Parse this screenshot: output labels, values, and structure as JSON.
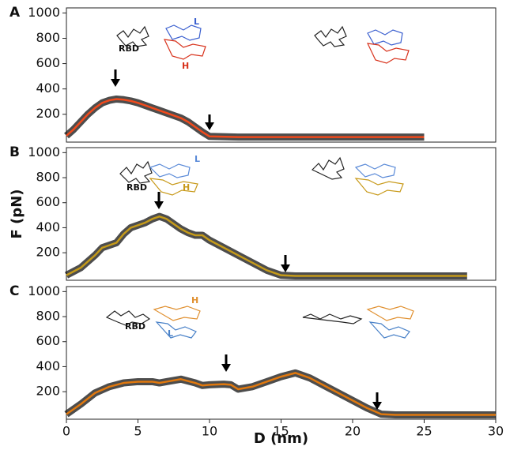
{
  "chart_data": [
    {
      "type": "line",
      "title": "A",
      "annotations": [
        "RBD",
        "L",
        "H"
      ],
      "xlim": [
        0,
        30
      ],
      "ylim": [
        -20,
        1040
      ],
      "yticks": [
        200,
        400,
        600,
        800,
        1000
      ],
      "series": [
        {
          "color": "#f04a1c",
          "x": [
            0,
            0.5,
            1,
            1.5,
            2,
            2.5,
            3,
            3.5,
            4,
            4.5,
            5,
            5.5,
            6,
            6.5,
            7,
            7.5,
            8,
            8.5,
            9,
            9.5,
            10,
            12,
            15,
            20,
            25
          ],
          "values": [
            30,
            80,
            140,
            200,
            250,
            290,
            310,
            320,
            315,
            305,
            290,
            270,
            250,
            230,
            210,
            190,
            170,
            140,
            100,
            60,
            25,
            20,
            20,
            20,
            20
          ]
        }
      ]
    },
    {
      "type": "line",
      "title": "B",
      "annotations": [
        "RBD",
        "L",
        "H"
      ],
      "ylabel": "F (pN)",
      "xlim": [
        0,
        30
      ],
      "ylim": [
        -20,
        1040
      ],
      "yticks": [
        200,
        400,
        600,
        800,
        1000
      ],
      "series": [
        {
          "color": "#c49a1a",
          "x": [
            0,
            1,
            2,
            2.5,
            3,
            3.5,
            4,
            4.5,
            5,
            5.5,
            6,
            6.5,
            7,
            7.5,
            8,
            8.5,
            9,
            9.5,
            10,
            11,
            12,
            13,
            14,
            15,
            16,
            20,
            25,
            28
          ],
          "values": [
            20,
            80,
            180,
            240,
            260,
            280,
            350,
            400,
            420,
            440,
            470,
            490,
            470,
            430,
            390,
            360,
            340,
            340,
            300,
            240,
            180,
            120,
            60,
            20,
            15,
            15,
            15,
            15
          ]
        }
      ]
    },
    {
      "type": "line",
      "title": "C",
      "annotations": [
        "RBD",
        "H",
        "L"
      ],
      "xlabel": "D (nm)",
      "xlim": [
        0,
        30
      ],
      "ylim": [
        -20,
        1040
      ],
      "yticks": [
        200,
        400,
        600,
        800,
        1000
      ],
      "xticks": [
        0,
        5,
        10,
        15,
        20,
        25,
        30
      ],
      "series": [
        {
          "color": "#e0780e",
          "x": [
            0,
            1,
            2,
            3,
            4,
            5,
            6,
            6.5,
            7,
            8,
            9,
            9.5,
            10,
            11,
            11.5,
            12,
            13,
            14,
            15,
            16,
            17,
            18,
            19,
            20,
            21,
            22,
            23,
            25,
            30
          ],
          "values": [
            20,
            100,
            190,
            240,
            270,
            280,
            280,
            270,
            280,
            300,
            270,
            250,
            255,
            260,
            255,
            220,
            240,
            280,
            320,
            350,
            310,
            250,
            190,
            130,
            70,
            20,
            15,
            15,
            15
          ]
        }
      ]
    }
  ]
}
